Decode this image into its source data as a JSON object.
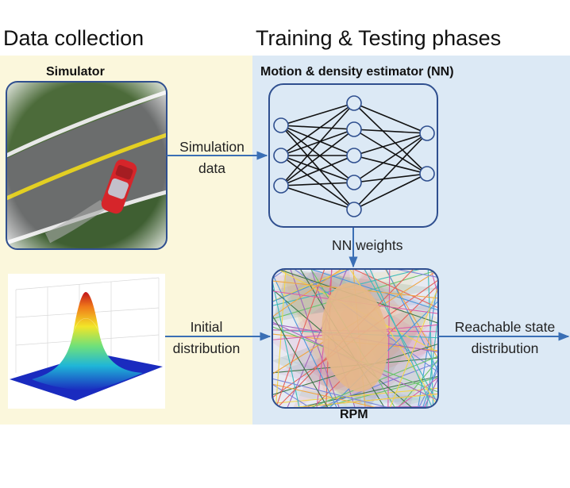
{
  "headings": {
    "data_collection": "Data collection",
    "training_testing": "Training & Testing phases"
  },
  "labels": {
    "simulator": "Simulator",
    "estimator": "Motion & density estimator (NN)",
    "rpm": "RPM"
  },
  "arrows": {
    "simulation_data": [
      "Simulation",
      "data"
    ],
    "nn_weights": "NN weights",
    "initial_distribution": [
      "Initial",
      "distribution"
    ],
    "reachable_state": [
      "Reachable state",
      "distribution"
    ]
  },
  "colors": {
    "left_background": "#fbf7dc",
    "right_background": "#dce9f5",
    "box_border": "#2f4f8f",
    "arrow": "#3a6fb5"
  }
}
